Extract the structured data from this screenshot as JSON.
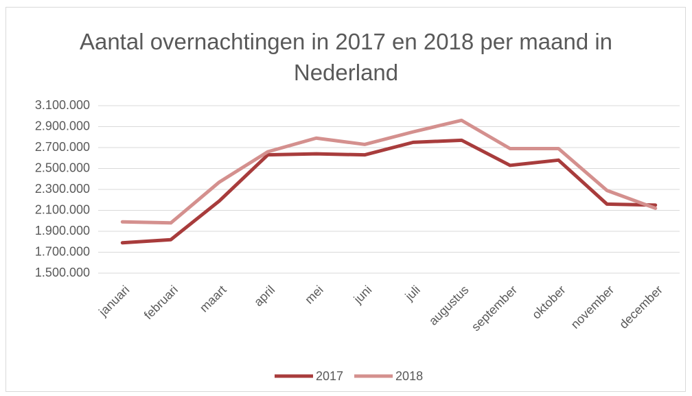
{
  "chart_data": {
    "type": "line",
    "title": "Aantal overnachtingen in 2017 en 2018 per maand in Nederland",
    "categories": [
      "januari",
      "februari",
      "maart",
      "april",
      "mei",
      "juni",
      "juli",
      "augustus",
      "september",
      "oktober",
      "november",
      "december"
    ],
    "series": [
      {
        "name": "2017",
        "color": "#a83c3c",
        "values": [
          1790000,
          1820000,
          2190000,
          2630000,
          2640000,
          2630000,
          2750000,
          2770000,
          2530000,
          2580000,
          2160000,
          2150000
        ]
      },
      {
        "name": "2018",
        "color": "#d4908e",
        "values": [
          1990000,
          1980000,
          2370000,
          2660000,
          2790000,
          2730000,
          2850000,
          2960000,
          2690000,
          2690000,
          2290000,
          2120000
        ]
      }
    ],
    "ylim": [
      1500000,
      3100000
    ],
    "yticks": [
      {
        "value": 1500000,
        "label": "1.500.000"
      },
      {
        "value": 1700000,
        "label": "1.700.000"
      },
      {
        "value": 1900000,
        "label": "1.900.000"
      },
      {
        "value": 2100000,
        "label": "2.100.000"
      },
      {
        "value": 2300000,
        "label": "2.300.000"
      },
      {
        "value": 2500000,
        "label": "2.500.000"
      },
      {
        "value": 2700000,
        "label": "2.700.000"
      },
      {
        "value": 2900000,
        "label": "2.900.000"
      },
      {
        "value": 3100000,
        "label": "3.100.000"
      }
    ],
    "grid": true,
    "legend": "bottom"
  }
}
